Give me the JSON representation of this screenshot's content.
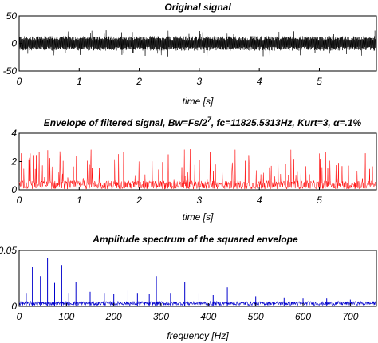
{
  "chart_data": [
    {
      "type": "line",
      "title": "Original signal",
      "xlabel": "time [s]",
      "ylabel": "",
      "xlim": [
        0,
        5.95
      ],
      "ylim": [
        -50,
        50
      ],
      "xticks": [
        0,
        1,
        2,
        3,
        4,
        5
      ],
      "yticks": [
        -50,
        0,
        50
      ],
      "grid": false,
      "color": "#000000",
      "series": [
        {
          "kind": "noise",
          "n": 1200,
          "center": 0,
          "amplitude": 12,
          "spike_prob": 0.04,
          "spike_amplitude": 24
        }
      ]
    },
    {
      "type": "line",
      "title": "Envelope of filtered signal, Bw=Fs/2",
      "title_sup": "7",
      "title_rest": ", fc=11825.5313Hz, Kurt=3, α=.1%",
      "xlabel": "time [s]",
      "ylabel": "",
      "xlim": [
        0,
        5.95
      ],
      "ylim": [
        0,
        4
      ],
      "xticks": [
        0,
        1,
        2,
        3,
        4,
        5
      ],
      "yticks": [
        0,
        2,
        4
      ],
      "grid": false,
      "color": "#ff0000",
      "series": [
        {
          "kind": "envelope",
          "n": 1000,
          "base": 0.6,
          "spike_prob": 0.12,
          "spike_max": 2.9
        }
      ]
    },
    {
      "type": "line",
      "title": "Amplitude spectrum of the squared envelope",
      "xlabel": "frequency [Hz]",
      "ylabel": "",
      "xlim": [
        0,
        755
      ],
      "ylim": [
        0,
        0.05
      ],
      "xticks": [
        0,
        100,
        200,
        300,
        400,
        500,
        600,
        700
      ],
      "ytick_labels": [
        "0",
        "0.05"
      ],
      "yticks": [
        0,
        0.05
      ],
      "grid": false,
      "color": "#0000cc",
      "peaks": [
        {
          "x": 15,
          "y": 0.012
        },
        {
          "x": 28,
          "y": 0.035
        },
        {
          "x": 45,
          "y": 0.027
        },
        {
          "x": 60,
          "y": 0.043
        },
        {
          "x": 75,
          "y": 0.021
        },
        {
          "x": 90,
          "y": 0.037
        },
        {
          "x": 105,
          "y": 0.012
        },
        {
          "x": 120,
          "y": 0.022
        },
        {
          "x": 150,
          "y": 0.013
        },
        {
          "x": 180,
          "y": 0.012
        },
        {
          "x": 200,
          "y": 0.011
        },
        {
          "x": 230,
          "y": 0.014
        },
        {
          "x": 250,
          "y": 0.012
        },
        {
          "x": 275,
          "y": 0.011
        },
        {
          "x": 290,
          "y": 0.027
        },
        {
          "x": 320,
          "y": 0.012
        },
        {
          "x": 350,
          "y": 0.022
        },
        {
          "x": 380,
          "y": 0.012
        },
        {
          "x": 410,
          "y": 0.01
        },
        {
          "x": 440,
          "y": 0.017
        },
        {
          "x": 500,
          "y": 0.009
        },
        {
          "x": 560,
          "y": 0.008
        },
        {
          "x": 600,
          "y": 0.007
        },
        {
          "x": 650,
          "y": 0.007
        },
        {
          "x": 700,
          "y": 0.006
        }
      ],
      "noise_floor": 0.003
    }
  ]
}
